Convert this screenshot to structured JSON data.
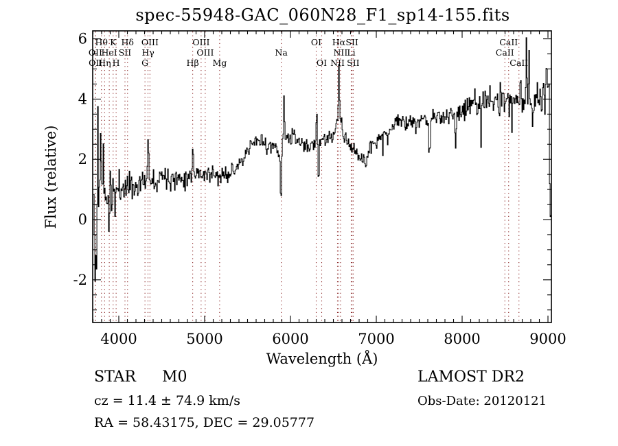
{
  "title": "spec-55948-GAC_060N28_F1_sp14-155.fits",
  "footer": {
    "object_class": "STAR",
    "subclass": "M0",
    "survey": "LAMOST DR2",
    "cz": "cz =  11.4 ± 74.9 km/s",
    "obs_date": "Obs-Date: 20120121",
    "radec": "RA =  58.43175, DEC =  29.05777"
  },
  "colors": {
    "spectrum": "#000000",
    "frame": "#000000",
    "line_marker": "#8B2525",
    "background": "#ffffff"
  },
  "chart_data": {
    "type": "line",
    "title": "spec-55948-GAC_060N28_F1_sp14-155.fits",
    "xlabel": "Wavelength (Å)",
    "ylabel": "Flux (relative)",
    "xlim": [
      3696,
      9040
    ],
    "ylim": [
      -3.4,
      6.26
    ],
    "x_ticks": [
      4000,
      5000,
      6000,
      7000,
      8000,
      9000
    ],
    "y_ticks": [
      -2,
      0,
      2,
      4,
      6
    ],
    "x_minor_step": 100,
    "y_minor_step": 0.5,
    "grid": false,
    "legend": "none",
    "line_markers": [
      {
        "label": "Hθ",
        "wavelength": 3798,
        "row": 1
      },
      {
        "label": "K",
        "wavelength": 3934,
        "row": 1
      },
      {
        "label": "Hδ",
        "wavelength": 4102,
        "row": 1
      },
      {
        "label": "OIII",
        "wavelength": 4363,
        "row": 1
      },
      {
        "label": "OIII",
        "wavelength": 4959,
        "row": 1
      },
      {
        "label": "OI",
        "wavelength": 6300,
        "row": 1
      },
      {
        "label": "Hα",
        "wavelength": 6563,
        "row": 1
      },
      {
        "label": "SII",
        "wavelength": 6717,
        "row": 1
      },
      {
        "label": "CaII",
        "wavelength": 8542,
        "row": 1
      },
      {
        "label": "OII",
        "wavelength": 3727,
        "row": 2
      },
      {
        "label": "HeI",
        "wavelength": 3889,
        "row": 2
      },
      {
        "label": "SII",
        "wavelength": 4072,
        "row": 2
      },
      {
        "label": "Hγ",
        "wavelength": 4340,
        "row": 2
      },
      {
        "label": "OIII",
        "wavelength": 5007,
        "row": 2
      },
      {
        "label": "Na",
        "wavelength": 5893,
        "row": 2
      },
      {
        "label": "NII",
        "wavelength": 6583,
        "row": 2
      },
      {
        "label": "Li",
        "wavelength": 6708,
        "row": 2
      },
      {
        "label": "CaII",
        "wavelength": 8498,
        "row": 2
      },
      {
        "label": "OII",
        "wavelength": 3729,
        "row": 3
      },
      {
        "label": "Hη",
        "wavelength": 3835,
        "row": 3
      },
      {
        "label": "H",
        "wavelength": 3969,
        "row": 3
      },
      {
        "label": "G",
        "wavelength": 4305,
        "row": 3
      },
      {
        "label": "Hβ",
        "wavelength": 4861,
        "row": 3
      },
      {
        "label": "Mg",
        "wavelength": 5175,
        "row": 3
      },
      {
        "label": "OI",
        "wavelength": 6364,
        "row": 3
      },
      {
        "label": "NII",
        "wavelength": 6548,
        "row": 3
      },
      {
        "label": "SII",
        "wavelength": 6731,
        "row": 3
      },
      {
        "label": "CaII",
        "wavelength": 8662,
        "row": 3
      }
    ],
    "continuum": [
      [
        3705,
        0.5
      ],
      [
        3740,
        0.8
      ],
      [
        3800,
        1.0
      ],
      [
        3900,
        1.05
      ],
      [
        4000,
        1.05
      ],
      [
        4100,
        1.15
      ],
      [
        4200,
        1.1
      ],
      [
        4300,
        1.3
      ],
      [
        4360,
        1.4
      ],
      [
        4420,
        1.3
      ],
      [
        4500,
        1.5
      ],
      [
        4560,
        1.45
      ],
      [
        4650,
        1.35
      ],
      [
        4750,
        1.4
      ],
      [
        4860,
        1.5
      ],
      [
        4950,
        1.55
      ],
      [
        5050,
        1.5
      ],
      [
        5120,
        1.45
      ],
      [
        5180,
        1.4
      ],
      [
        5260,
        1.55
      ],
      [
        5360,
        1.7
      ],
      [
        5460,
        2.0
      ],
      [
        5560,
        2.55
      ],
      [
        5640,
        2.65
      ],
      [
        5740,
        2.45
      ],
      [
        5820,
        2.35
      ],
      [
        5880,
        2.3
      ],
      [
        5960,
        2.7
      ],
      [
        6020,
        2.75
      ],
      [
        6100,
        2.6
      ],
      [
        6160,
        2.4
      ],
      [
        6260,
        2.5
      ],
      [
        6360,
        2.65
      ],
      [
        6460,
        2.7
      ],
      [
        6520,
        2.85
      ],
      [
        6563,
        3.05
      ],
      [
        6620,
        2.7
      ],
      [
        6700,
        2.45
      ],
      [
        6800,
        2.05
      ],
      [
        6880,
        2.15
      ],
      [
        6960,
        2.5
      ],
      [
        7040,
        2.7
      ],
      [
        7130,
        3.0
      ],
      [
        7250,
        3.3
      ],
      [
        7350,
        3.15
      ],
      [
        7450,
        3.25
      ],
      [
        7560,
        3.4
      ],
      [
        7700,
        3.35
      ],
      [
        7800,
        3.45
      ],
      [
        7900,
        3.5
      ],
      [
        8000,
        3.6
      ],
      [
        8100,
        3.75
      ],
      [
        8200,
        3.9
      ],
      [
        8300,
        3.95
      ],
      [
        8400,
        3.9
      ],
      [
        8500,
        4.0
      ],
      [
        8600,
        4.05
      ],
      [
        8700,
        4.0
      ],
      [
        8800,
        4.15
      ],
      [
        8900,
        4.05
      ],
      [
        8960,
        4.15
      ],
      [
        9005,
        4.3
      ],
      [
        9018,
        1.0
      ],
      [
        9030,
        0.3
      ],
      [
        9040,
        0.25
      ]
    ],
    "features": [
      [
        3722,
        6,
        -3.3
      ],
      [
        3740,
        5,
        -1.5
      ],
      [
        3752,
        5,
        2.0
      ],
      [
        3790,
        6,
        1.8
      ],
      [
        3815,
        5,
        1.2
      ],
      [
        3860,
        5,
        -1.2
      ],
      [
        3885,
        4,
        -1.3
      ],
      [
        3915,
        4,
        -1.1
      ],
      [
        3955,
        4,
        -0.9
      ],
      [
        4340,
        5,
        1.5
      ],
      [
        4861,
        5,
        1.3
      ],
      [
        5885,
        6,
        -1.95
      ],
      [
        5922,
        6,
        1.7
      ],
      [
        6302,
        4,
        1.3
      ],
      [
        6325,
        5,
        -1.5
      ],
      [
        6563,
        22,
        0.5
      ],
      [
        6563,
        4,
        2.0
      ],
      [
        6872,
        10,
        -0.35
      ],
      [
        7130,
        10,
        -0.5
      ],
      [
        7615,
        12,
        -1.0
      ],
      [
        7920,
        7,
        -0.8
      ],
      [
        8216,
        5,
        -0.7
      ],
      [
        8576,
        5,
        -1.0
      ],
      [
        8680,
        4,
        1.0
      ],
      [
        8745,
        4,
        2.1
      ],
      [
        8775,
        4,
        1.6
      ],
      [
        8815,
        5,
        -1.3
      ],
      [
        8980,
        5,
        1.4
      ],
      [
        9012,
        4,
        0.8
      ]
    ],
    "noise_envelope": [
      [
        3705,
        0.95
      ],
      [
        3770,
        0.6
      ],
      [
        3850,
        0.38
      ],
      [
        3920,
        0.3
      ],
      [
        3990,
        0.25
      ],
      [
        4300,
        0.18
      ],
      [
        5000,
        0.15
      ],
      [
        5600,
        0.13
      ],
      [
        6600,
        0.12
      ],
      [
        7300,
        0.11
      ],
      [
        7700,
        0.15
      ],
      [
        8250,
        0.24
      ],
      [
        9040,
        0.28
      ]
    ],
    "noise_seed": 11,
    "sample_step": 8
  }
}
